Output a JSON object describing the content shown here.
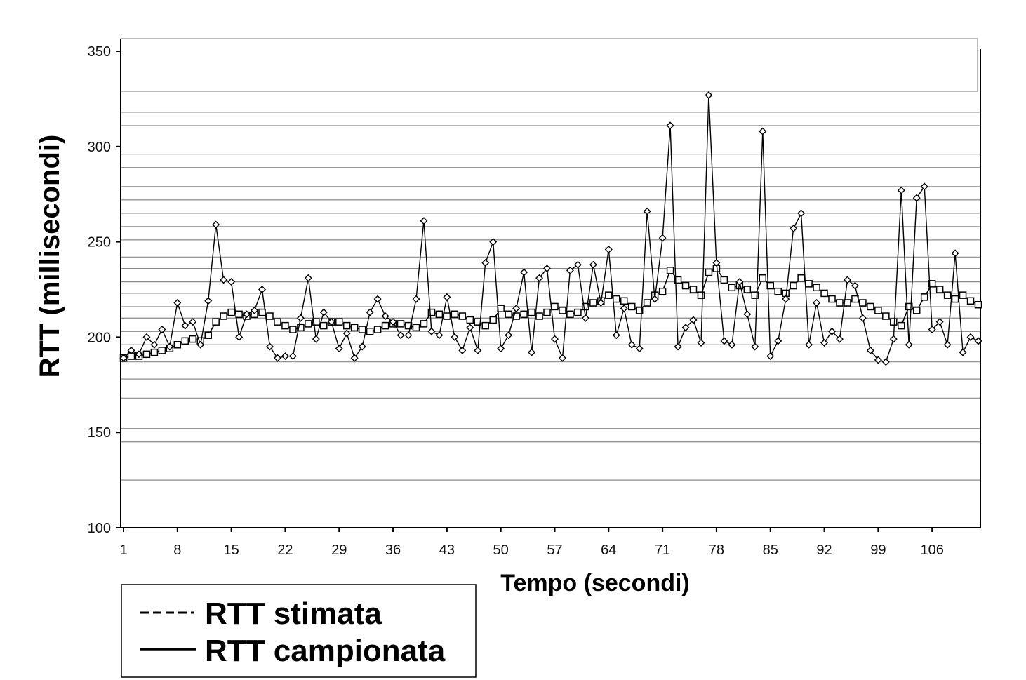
{
  "chart_data": {
    "type": "line",
    "xlabel": "Tempo (secondi)",
    "ylabel": "RTT (millisecondi)",
    "ylim": [
      100,
      350
    ],
    "xlim": [
      1,
      112
    ],
    "y_ticks": [
      100,
      150,
      200,
      250,
      300,
      350
    ],
    "x_ticks": [
      1,
      8,
      15,
      22,
      29,
      36,
      43,
      50,
      57,
      64,
      71,
      78,
      85,
      92,
      99,
      106
    ],
    "grid": "horizontal",
    "legend_position": "bottom-left",
    "series": [
      {
        "name": "RTT stimata",
        "marker": "square",
        "values": [
          189,
          190,
          190,
          191,
          192,
          193,
          194,
          196,
          198,
          199,
          198,
          201,
          208,
          211,
          213,
          212,
          211,
          212,
          213,
          211,
          208,
          206,
          204,
          205,
          207,
          208,
          206,
          208,
          208,
          206,
          205,
          204,
          203,
          204,
          206,
          207,
          207,
          206,
          205,
          207,
          213,
          212,
          211,
          212,
          211,
          209,
          208,
          206,
          209,
          215,
          212,
          211,
          212,
          213,
          211,
          213,
          216,
          214,
          212,
          213,
          216,
          218,
          219,
          222,
          220,
          219,
          216,
          214,
          218,
          222,
          224,
          235,
          230,
          227,
          225,
          222,
          234,
          236,
          230,
          226,
          227,
          225,
          222,
          231,
          227,
          224,
          223,
          227,
          231,
          228,
          226,
          223,
          220,
          218,
          218,
          220,
          218,
          216,
          214,
          211,
          208,
          206,
          216,
          214,
          221,
          228,
          225,
          222,
          220,
          222,
          219,
          217
        ]
      },
      {
        "name": "RTT campionata",
        "marker": "diamond",
        "values": [
          189,
          193,
          191,
          200,
          196,
          204,
          195,
          218,
          206,
          208,
          196,
          219,
          259,
          230,
          229,
          200,
          212,
          214,
          225,
          195,
          189,
          190,
          190,
          210,
          231,
          199,
          213,
          208,
          194,
          202,
          189,
          195,
          213,
          220,
          211,
          208,
          201,
          201,
          220,
          261,
          203,
          201,
          221,
          200,
          193,
          205,
          193,
          239,
          250,
          194,
          201,
          215,
          234,
          192,
          231,
          236,
          199,
          189,
          235,
          238,
          210,
          238,
          218,
          246,
          201,
          215,
          196,
          194,
          266,
          220,
          252,
          311,
          195,
          205,
          209,
          197,
          327,
          239,
          198,
          196,
          229,
          212,
          195,
          308,
          190,
          198,
          220,
          257,
          265,
          196,
          218,
          197,
          203,
          199,
          230,
          227,
          210,
          193,
          188,
          187,
          199,
          277,
          196,
          273,
          279,
          204,
          208,
          196,
          244,
          192,
          200,
          198
        ]
      }
    ]
  }
}
